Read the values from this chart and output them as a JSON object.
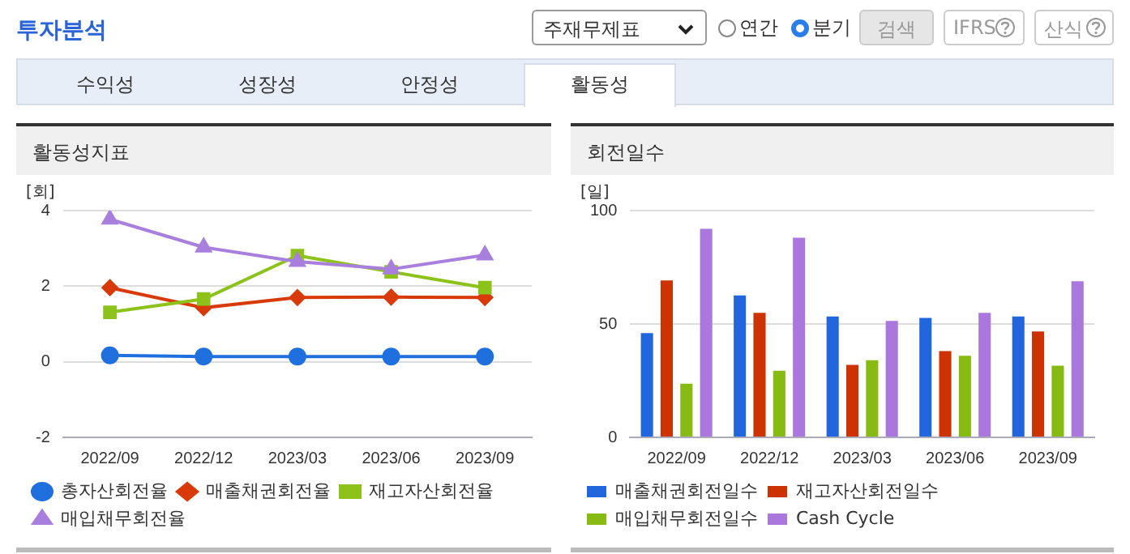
{
  "chart_data": [
    {
      "type": "other",
      "title": "투자분석",
      "annotations": [
        "주재무제표",
        "연간",
        "분기",
        "검색",
        "IFRS",
        "산식",
        "수익성",
        "성장성",
        "안정성",
        "활동성"
      ]
    },
    {
      "type": "line",
      "title": "활동성지표",
      "ylabel": "[회]",
      "categories": [
        "2022/09",
        "2022/12",
        "2023/03",
        "2023/06",
        "2023/09"
      ],
      "ylim": [
        -2,
        4
      ],
      "yticks": [
        -2,
        0,
        2,
        4
      ],
      "grid": "y",
      "legend": "bottom",
      "series": [
        {
          "name": "총자산회전율",
          "color": "#1f6fde",
          "marker": "circle",
          "values": [
            0.17,
            0.14,
            0.14,
            0.14,
            0.14
          ]
        },
        {
          "name": "매출채권회전율",
          "color": "#d83a0a",
          "marker": "diamond",
          "values": [
            1.96,
            1.43,
            1.7,
            1.71,
            1.7
          ]
        },
        {
          "name": "재고자산회전율",
          "color": "#8cc21a",
          "marker": "square",
          "values": [
            1.31,
            1.66,
            2.81,
            2.38,
            1.96
          ]
        },
        {
          "name": "매입채무회전율",
          "color": "#a87fdc",
          "marker": "triangle",
          "values": [
            3.77,
            3.03,
            2.65,
            2.45,
            2.82
          ]
        }
      ]
    },
    {
      "type": "bar",
      "title": "회전일수",
      "ylabel": "[일]",
      "categories": [
        "2022/09",
        "2022/12",
        "2023/03",
        "2023/06",
        "2023/09"
      ],
      "ylim": [
        0,
        100
      ],
      "yticks": [
        0,
        50,
        100
      ],
      "grid": "y",
      "legend": "bottom",
      "series": [
        {
          "name": "매출채권회전일수",
          "color": "#2266dd",
          "values": [
            46,
            62.6,
            53.3,
            52.7,
            53.3
          ]
        },
        {
          "name": "재고자산회전일수",
          "color": "#cc3300",
          "values": [
            69.2,
            54.9,
            32,
            38,
            46.7
          ]
        },
        {
          "name": "매입채무회전일수",
          "color": "#88bb11",
          "values": [
            23.7,
            29.4,
            34,
            36,
            31.6
          ]
        },
        {
          "name": "Cash Cycle",
          "color": "#aa77dd",
          "values": [
            92,
            88,
            51.3,
            54.9,
            68.8
          ]
        }
      ]
    }
  ]
}
